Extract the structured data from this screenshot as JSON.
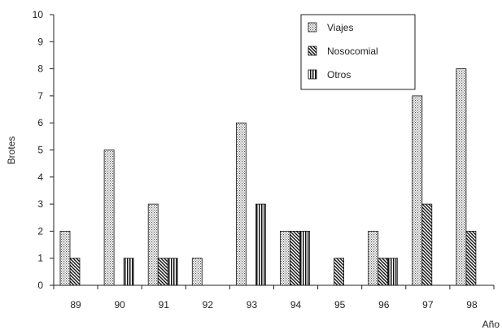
{
  "chart_data": {
    "type": "bar",
    "title": "",
    "xlabel": "Año",
    "ylabel": "Brotes",
    "categories": [
      "89",
      "90",
      "91",
      "92",
      "93",
      "94",
      "95",
      "96",
      "97",
      "98"
    ],
    "series": [
      {
        "name": "Viajes",
        "values": [
          2,
          5,
          3,
          1,
          6,
          2,
          0,
          2,
          7,
          8
        ],
        "pattern": "dots"
      },
      {
        "name": "Nosocomial",
        "values": [
          1,
          0,
          1,
          0,
          0,
          2,
          1,
          1,
          3,
          2
        ],
        "pattern": "diagonal"
      },
      {
        "name": "Otros",
        "values": [
          0,
          1,
          1,
          0,
          3,
          2,
          0,
          1,
          0,
          0
        ],
        "pattern": "vertical"
      }
    ],
    "yticks": [
      0,
      1,
      2,
      3,
      4,
      5,
      6,
      7,
      8,
      9,
      10
    ],
    "ylim": [
      0,
      10
    ],
    "grid": false,
    "legend_position": "top-right"
  }
}
